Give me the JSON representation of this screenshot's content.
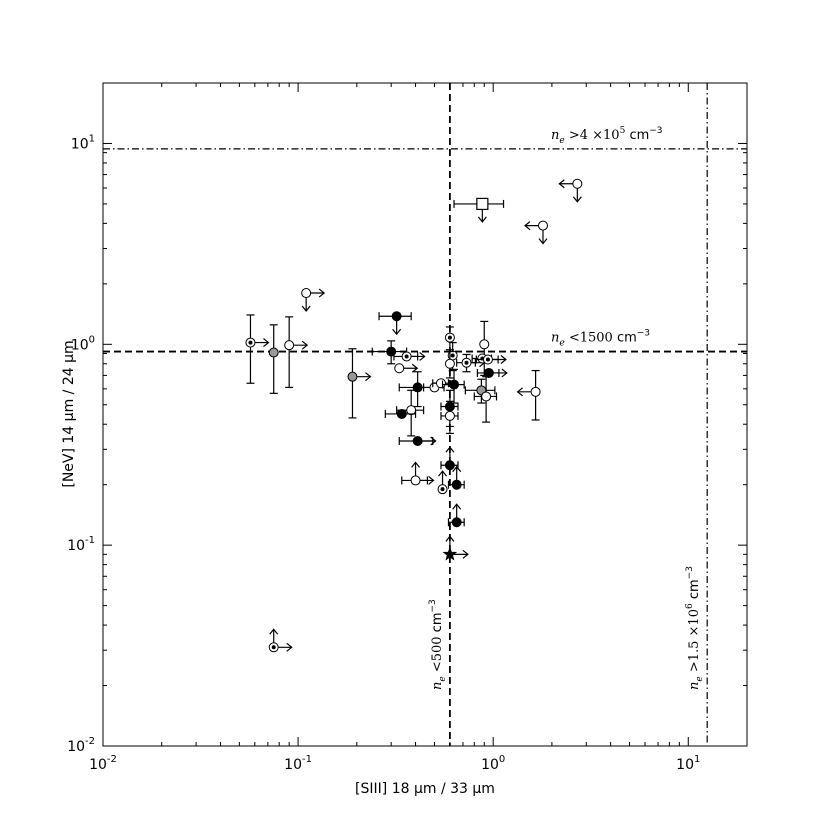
{
  "chart_data": {
    "type": "scatter",
    "xlabel": "[SIII] 18 μm / 33 μm",
    "ylabel": "[NeV] 14 μm / 24 μm",
    "xscale": "log",
    "yscale": "log",
    "xlim": [
      0.01,
      20
    ],
    "ylim": [
      0.01,
      20
    ],
    "x_ticks": [
      {
        "value": 0.01,
        "base": "10",
        "exp": "-2"
      },
      {
        "value": 0.1,
        "base": "10",
        "exp": "-1"
      },
      {
        "value": 1,
        "base": "10",
        "exp": "0"
      },
      {
        "value": 10,
        "base": "10",
        "exp": "1"
      }
    ],
    "y_ticks": [
      {
        "value": 0.01,
        "base": "10",
        "exp": "-2"
      },
      {
        "value": 0.1,
        "base": "10",
        "exp": "-1"
      },
      {
        "value": 1,
        "base": "10",
        "exp": "0"
      },
      {
        "value": 10,
        "base": "10",
        "exp": "1"
      }
    ],
    "reference_lines": [
      {
        "orientation": "horizontal",
        "value": 9.4,
        "style": "dashdot",
        "label_main": "n",
        "label_sub": "e",
        "label_rest": " >4 ×10",
        "label_sup": "5",
        "label_unit": "  cm",
        "label_unit_sup": "−3"
      },
      {
        "orientation": "horizontal",
        "value": 0.92,
        "style": "dashed",
        "label_main": "n",
        "label_sub": "e",
        "label_rest": " <1500",
        "label_sup": "",
        "label_unit": " cm",
        "label_unit_sup": "−3"
      },
      {
        "orientation": "vertical",
        "value": 0.6,
        "style": "dashed",
        "label_main": "n",
        "label_sub": "e",
        "label_rest": " <500",
        "label_sup": "",
        "label_unit": " cm",
        "label_unit_sup": "−3"
      },
      {
        "orientation": "vertical",
        "value": 12.5,
        "style": "dashdot",
        "label_main": "n",
        "label_sub": "e",
        "label_rest": " >1.5 ×10",
        "label_sup": "6",
        "label_unit": "  cm",
        "label_unit_sup": "−3"
      }
    ],
    "points": [
      {
        "x": 2.7,
        "y": 6.3,
        "marker": "open",
        "xerr": 0,
        "yerr": 0,
        "limx": "upper",
        "limy": "upper"
      },
      {
        "x": 0.88,
        "y": 5.0,
        "marker": "square",
        "xerr": 0.25,
        "yerr": 0,
        "limx": "",
        "limy": "upper"
      },
      {
        "x": 1.8,
        "y": 3.9,
        "marker": "open",
        "xerr": 0,
        "yerr": 0,
        "limx": "upper",
        "limy": "upper"
      },
      {
        "x": 0.11,
        "y": 1.8,
        "marker": "open",
        "xerr": 0,
        "yerr": 0,
        "limx": "lower",
        "limy": "upper"
      },
      {
        "x": 0.057,
        "y": 1.02,
        "marker": "dotted",
        "xerr": 0,
        "yerr": 0.38,
        "limx": "lower",
        "limy": ""
      },
      {
        "x": 0.075,
        "y": 0.91,
        "marker": "gray",
        "xerr": 0,
        "yerr": 0.34,
        "limx": "",
        "limy": ""
      },
      {
        "x": 0.09,
        "y": 0.99,
        "marker": "open",
        "xerr": 0,
        "yerr": 0.38,
        "limx": "lower",
        "limy": ""
      },
      {
        "x": 0.19,
        "y": 0.69,
        "marker": "gray",
        "xerr": 0,
        "yerr": 0.26,
        "limx": "lower",
        "limy": ""
      },
      {
        "x": 0.32,
        "y": 1.38,
        "marker": "filled",
        "xerr": 0.06,
        "yerr": 0,
        "limx": "",
        "limy": "upper"
      },
      {
        "x": 0.3,
        "y": 0.92,
        "marker": "filled",
        "xerr": 0.06,
        "yerr": 0.12,
        "limx": "",
        "limy": ""
      },
      {
        "x": 0.36,
        "y": 0.87,
        "marker": "dotted",
        "xerr": 0.05,
        "yerr": 0,
        "limx": "lower",
        "limy": ""
      },
      {
        "x": 0.33,
        "y": 0.76,
        "marker": "open",
        "xerr": 0,
        "yerr": 0,
        "limx": "lower",
        "limy": ""
      },
      {
        "x": 0.41,
        "y": 0.61,
        "marker": "filled",
        "xerr": 0.08,
        "yerr": 0.12,
        "limx": "",
        "limy": ""
      },
      {
        "x": 0.38,
        "y": 0.47,
        "marker": "open",
        "xerr": 0.06,
        "yerr": 0.12,
        "limx": "",
        "limy": ""
      },
      {
        "x": 0.34,
        "y": 0.45,
        "marker": "filled",
        "xerr": 0.06,
        "yerr": 0,
        "limx": "",
        "limy": ""
      },
      {
        "x": 0.5,
        "y": 0.61,
        "marker": "open",
        "xerr": 0.06,
        "yerr": 0,
        "limx": "",
        "limy": ""
      },
      {
        "x": 0.54,
        "y": 0.64,
        "marker": "open",
        "xerr": 0.05,
        "yerr": 0,
        "limx": "",
        "limy": ""
      },
      {
        "x": 0.6,
        "y": 1.08,
        "marker": "dotted",
        "xerr": 0,
        "yerr": 0.14,
        "limx": "",
        "limy": ""
      },
      {
        "x": 0.62,
        "y": 0.88,
        "marker": "dotted",
        "xerr": 0,
        "yerr": 0.14,
        "limx": "",
        "limy": ""
      },
      {
        "x": 0.6,
        "y": 0.8,
        "marker": "open",
        "xerr": 0,
        "yerr": 0.12,
        "limx": "",
        "limy": ""
      },
      {
        "x": 0.63,
        "y": 0.63,
        "marker": "filled",
        "xerr": 0.08,
        "yerr": 0.12,
        "limx": "",
        "limy": ""
      },
      {
        "x": 0.6,
        "y": 0.49,
        "marker": "filled",
        "xerr": 0.06,
        "yerr": 0.1,
        "limx": "",
        "limy": ""
      },
      {
        "x": 0.6,
        "y": 0.44,
        "marker": "open",
        "xerr": 0.06,
        "yerr": 0.08,
        "limx": "",
        "limy": ""
      },
      {
        "x": 0.73,
        "y": 0.81,
        "marker": "dotted",
        "xerr": 0.08,
        "yerr": 0.08,
        "limx": "lower",
        "limy": ""
      },
      {
        "x": 0.9,
        "y": 1.0,
        "marker": "open",
        "xerr": 0,
        "yerr": 0.3,
        "limx": "",
        "limy": ""
      },
      {
        "x": 0.88,
        "y": 0.85,
        "marker": "dotted",
        "xerr": 0.1,
        "yerr": 0,
        "limx": "",
        "limy": ""
      },
      {
        "x": 0.94,
        "y": 0.84,
        "marker": "dotted",
        "xerr": 0.12,
        "yerr": 0,
        "limx": "lower",
        "limy": ""
      },
      {
        "x": 0.95,
        "y": 0.72,
        "marker": "filled",
        "xerr": 0.12,
        "yerr": 0,
        "limx": "lower",
        "limy": ""
      },
      {
        "x": 0.87,
        "y": 0.59,
        "marker": "gray",
        "xerr": 0.15,
        "yerr": 0.08,
        "limx": "",
        "limy": ""
      },
      {
        "x": 0.92,
        "y": 0.55,
        "marker": "open",
        "xerr": 0.12,
        "yerr": 0.14,
        "limx": "",
        "limy": ""
      },
      {
        "x": 1.65,
        "y": 0.58,
        "marker": "open",
        "xerr": 0,
        "yerr": 0.16,
        "limx": "upper",
        "limy": ""
      },
      {
        "x": 0.41,
        "y": 0.33,
        "marker": "filled",
        "xerr": 0.08,
        "yerr": 0,
        "limx": "lower",
        "limy": ""
      },
      {
        "x": 0.6,
        "y": 0.25,
        "marker": "filled",
        "xerr": 0.06,
        "yerr": 0,
        "limx": "",
        "limy": "lower"
      },
      {
        "x": 0.4,
        "y": 0.21,
        "marker": "open",
        "xerr": 0.06,
        "yerr": 0,
        "limx": "lower",
        "limy": "lower"
      },
      {
        "x": 0.55,
        "y": 0.19,
        "marker": "dotted",
        "xerr": 0,
        "yerr": 0,
        "limx": "",
        "limy": "lower"
      },
      {
        "x": 0.65,
        "y": 0.2,
        "marker": "filled",
        "xerr": 0.06,
        "yerr": 0,
        "limx": "",
        "limy": "lower"
      },
      {
        "x": 0.65,
        "y": 0.13,
        "marker": "filled",
        "xerr": 0.06,
        "yerr": 0,
        "limx": "",
        "limy": "lower"
      },
      {
        "x": 0.6,
        "y": 0.09,
        "marker": "star",
        "xerr": 0,
        "yerr": 0,
        "limx": "lower",
        "limy": "lower"
      },
      {
        "x": 0.075,
        "y": 0.031,
        "marker": "dotted",
        "xerr": 0,
        "yerr": 0,
        "limx": "lower",
        "limy": "lower"
      }
    ]
  }
}
